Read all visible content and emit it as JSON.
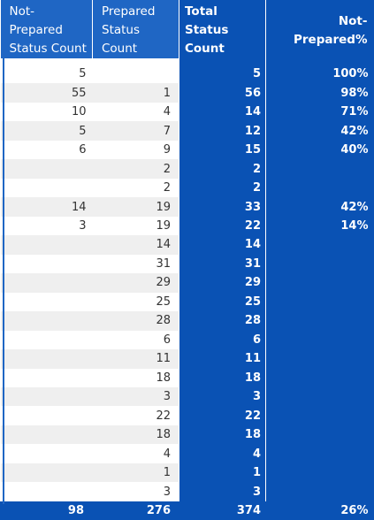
{
  "headers": {
    "col1": [
      "Not-Prepared",
      "Status Count"
    ],
    "col2": [
      "Prepared",
      "Status Count"
    ],
    "col3": [
      "Total",
      "Status Count"
    ],
    "col4": "Not-Prepared%"
  },
  "rows": [
    {
      "not_prepared": "5",
      "prepared": "",
      "total": "5",
      "pct": "100%"
    },
    {
      "not_prepared": "55",
      "prepared": "1",
      "total": "56",
      "pct": "98%"
    },
    {
      "not_prepared": "10",
      "prepared": "4",
      "total": "14",
      "pct": "71%"
    },
    {
      "not_prepared": "5",
      "prepared": "7",
      "total": "12",
      "pct": "42%"
    },
    {
      "not_prepared": "6",
      "prepared": "9",
      "total": "15",
      "pct": "40%"
    },
    {
      "not_prepared": "",
      "prepared": "2",
      "total": "2",
      "pct": ""
    },
    {
      "not_prepared": "",
      "prepared": "2",
      "total": "2",
      "pct": ""
    },
    {
      "not_prepared": "14",
      "prepared": "19",
      "total": "33",
      "pct": "42%"
    },
    {
      "not_prepared": "3",
      "prepared": "19",
      "total": "22",
      "pct": "14%"
    },
    {
      "not_prepared": "",
      "prepared": "14",
      "total": "14",
      "pct": ""
    },
    {
      "not_prepared": "",
      "prepared": "31",
      "total": "31",
      "pct": ""
    },
    {
      "not_prepared": "",
      "prepared": "29",
      "total": "29",
      "pct": ""
    },
    {
      "not_prepared": "",
      "prepared": "25",
      "total": "25",
      "pct": ""
    },
    {
      "not_prepared": "",
      "prepared": "28",
      "total": "28",
      "pct": ""
    },
    {
      "not_prepared": "",
      "prepared": "6",
      "total": "6",
      "pct": ""
    },
    {
      "not_prepared": "",
      "prepared": "11",
      "total": "11",
      "pct": ""
    },
    {
      "not_prepared": "",
      "prepared": "18",
      "total": "18",
      "pct": ""
    },
    {
      "not_prepared": "",
      "prepared": "3",
      "total": "3",
      "pct": ""
    },
    {
      "not_prepared": "",
      "prepared": "22",
      "total": "22",
      "pct": ""
    },
    {
      "not_prepared": "",
      "prepared": "18",
      "total": "18",
      "pct": ""
    },
    {
      "not_prepared": "",
      "prepared": "4",
      "total": "4",
      "pct": ""
    },
    {
      "not_prepared": "",
      "prepared": "1",
      "total": "1",
      "pct": ""
    },
    {
      "not_prepared": "",
      "prepared": "3",
      "total": "3",
      "pct": ""
    }
  ],
  "totals": {
    "not_prepared": "98",
    "prepared": "276",
    "total": "374",
    "pct": "26%"
  },
  "colors": {
    "header": "#1f66c4",
    "highlight": "#0a52b4",
    "stripe": "#efefef"
  }
}
